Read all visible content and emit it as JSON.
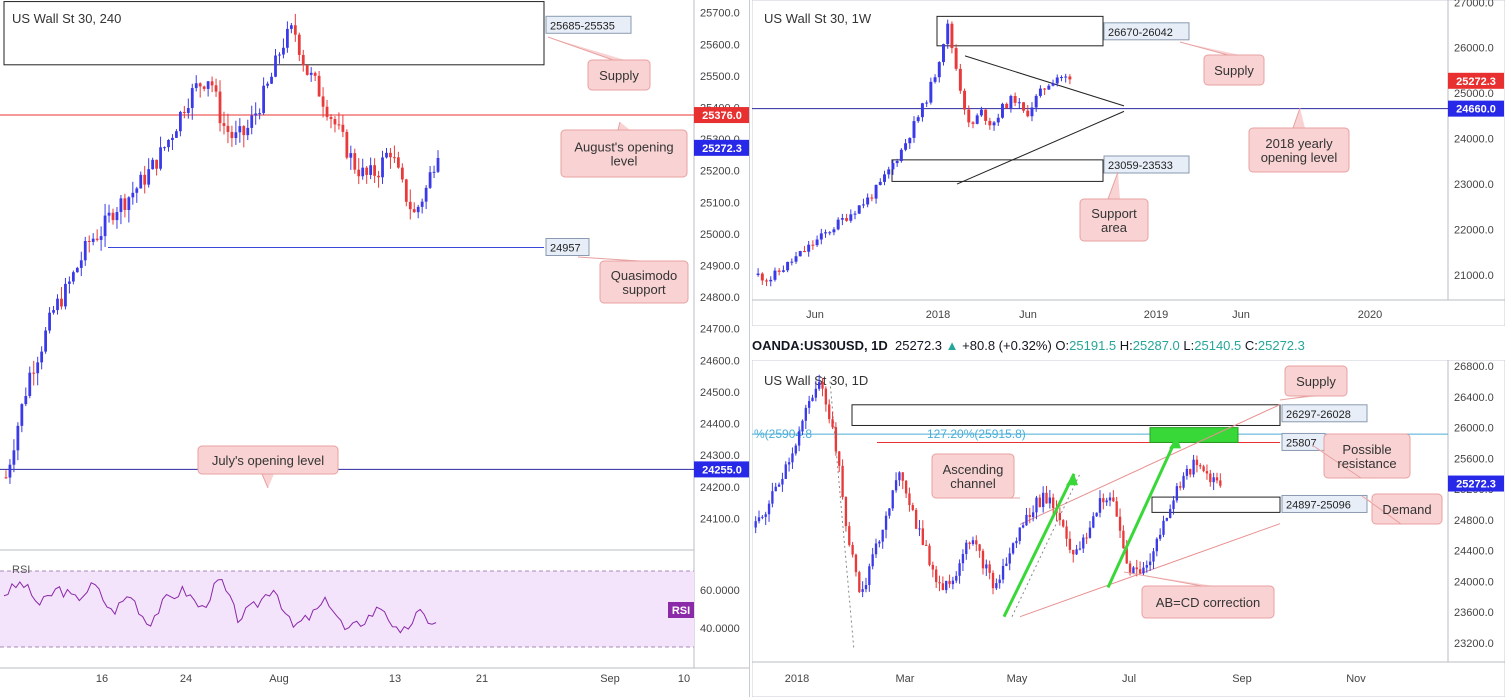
{
  "chart_data": [
    {
      "type": "candlestick",
      "title": "US Wall St 30, 240",
      "ylim": [
        24000,
        25740
      ],
      "y_ticks": [
        "25700.0",
        "25600.0",
        "25500.0",
        "25400.0",
        "25300.0",
        "25200.0",
        "25100.0",
        "25000.0",
        "24900.0",
        "24800.0",
        "24700.0",
        "24600.0",
        "24500.0",
        "24400.0",
        "24300.0",
        "24200.0",
        "24100.0"
      ],
      "x_ticks": [
        "16",
        "24",
        "Aug",
        "13",
        "21",
        "Sep",
        "10"
      ],
      "series": [
        {
          "close": [
            24230,
            24400,
            24560,
            24650,
            24760,
            24820,
            24900,
            24980,
            25010,
            25080,
            25110,
            25150,
            25200,
            25260,
            25330,
            25420,
            25470,
            25500,
            25350,
            25300,
            25320,
            25400,
            25480,
            25600,
            25650,
            25520,
            25460,
            25380,
            25300,
            25220,
            25180,
            25200,
            25270,
            25150,
            25060,
            25140,
            25272
          ]
        }
      ],
      "price_axis_labels": [
        {
          "value": 25376,
          "text": "25376.0",
          "color": "#e83030"
        },
        {
          "value": 25272.3,
          "text": "25272.3",
          "color": "#2828e8"
        },
        {
          "value": 24255,
          "text": "24255.0",
          "color": "#2828e8"
        }
      ],
      "levels": [
        {
          "value": 25376,
          "color": "#e83030"
        },
        {
          "value": 24957,
          "color": "#3a48d8"
        },
        {
          "value": 24255,
          "color": "#2a2aa0"
        }
      ],
      "zone_labels": [
        "25685-25535",
        "24957"
      ],
      "callouts": [
        "Supply",
        "August's opening level",
        "Quasimodo support",
        "July's opening level"
      ],
      "rsi": {
        "label": "RSI",
        "y_ticks": [
          "60.0000",
          "40.0000"
        ],
        "badge": "RSI",
        "values": [
          58,
          64,
          52,
          61,
          55,
          63,
          48,
          58,
          42,
          55,
          60,
          50,
          66,
          45,
          52,
          62,
          40,
          46,
          55,
          38,
          44,
          52,
          35,
          48,
          42
        ]
      }
    },
    {
      "type": "candlestick",
      "title": "US Wall St 30, 1W",
      "ylim": [
        20450,
        27050
      ],
      "y_ticks": [
        "27000.0",
        "26000.0",
        "25000.0",
        "24000.0",
        "23000.0",
        "22000.0",
        "21000.0"
      ],
      "x_ticks": [
        "Jun",
        "2018",
        "Jun",
        "2019",
        "Jun",
        "2020"
      ],
      "series": [
        {
          "close": [
            21000,
            20900,
            21100,
            21300,
            21500,
            21700,
            21900,
            22100,
            22300,
            22500,
            22700,
            23000,
            23400,
            23800,
            24300,
            24800,
            25500,
            26500,
            25300,
            24200,
            24600,
            24300,
            24700,
            24900,
            24500,
            24900,
            25200,
            25400,
            25272
          ]
        }
      ],
      "price_axis_labels": [
        {
          "value": 25272.3,
          "text": "25272.3",
          "color": "#e83030"
        },
        {
          "value": 24660,
          "text": "24660.0",
          "color": "#2828e8"
        }
      ],
      "levels": [
        {
          "value": 24660,
          "color": "#2a2aa0"
        }
      ],
      "zone_labels": [
        "26670-26042",
        "23059-23533"
      ],
      "callouts": [
        "Supply",
        "2018 yearly opening level",
        "Support area"
      ]
    },
    {
      "type": "candlestick",
      "title": "US Wall St 30, 1D",
      "info": {
        "symbol": "OANDA:US30USD, 1D",
        "last": "25272.3",
        "change": "+80.8 (+0.32%)",
        "o_label": "O:",
        "o": "25191.5",
        "h_label": "H:",
        "h": "25287.0",
        "l_label": "L:",
        "l": "25140.5",
        "c_label": "C:",
        "c": "25272.3"
      },
      "ylim": [
        22950,
        26880
      ],
      "y_ticks": [
        "26800.0",
        "26400.0",
        "26000.0",
        "25600.0",
        "25200.0",
        "24800.0",
        "24400.0",
        "24000.0",
        "23600.0",
        "23200.0"
      ],
      "x_ticks": [
        "2018",
        "Mar",
        "May",
        "Jul",
        "Sep",
        "Nov"
      ],
      "series": [
        {
          "close": [
            24700,
            25000,
            25400,
            25800,
            26300,
            26600,
            25800,
            24500,
            23800,
            24400,
            25000,
            25400,
            24800,
            24300,
            23900,
            24100,
            24600,
            24300,
            23900,
            24300,
            24700,
            25000,
            25100,
            24800,
            24300,
            24600,
            25100,
            25000,
            24200,
            24100,
            24400,
            24900,
            25300,
            25500,
            25400,
            25272
          ]
        }
      ],
      "price_axis_labels": [
        {
          "value": 25272.3,
          "text": "25272.3",
          "color": "#2828e8"
        }
      ],
      "levels": [
        {
          "value": 25807,
          "color": "#e83030"
        },
        {
          "value": 25915.8,
          "color": "#4aaed8"
        }
      ],
      "zone_labels": [
        "26297-26028",
        "25807",
        "24897-25096"
      ],
      "fib_labels": [
        "127.20%(25915.8)",
        "%(25904.8"
      ],
      "callouts": [
        "Supply",
        "Possible resistance",
        "Demand",
        "Ascending channel",
        "AB=CD correction"
      ]
    }
  ],
  "colors": {
    "up": "#3a3ae8",
    "down": "#e83a3a",
    "callout_fill": "#f9d3d3",
    "callout_border": "#e8a0a0",
    "zone_border": "#222222",
    "label_box": "#e7eef8",
    "rsi_fill": "#f3e3fb",
    "rsi_line": "#8a2aa8",
    "green": "#38d838"
  }
}
